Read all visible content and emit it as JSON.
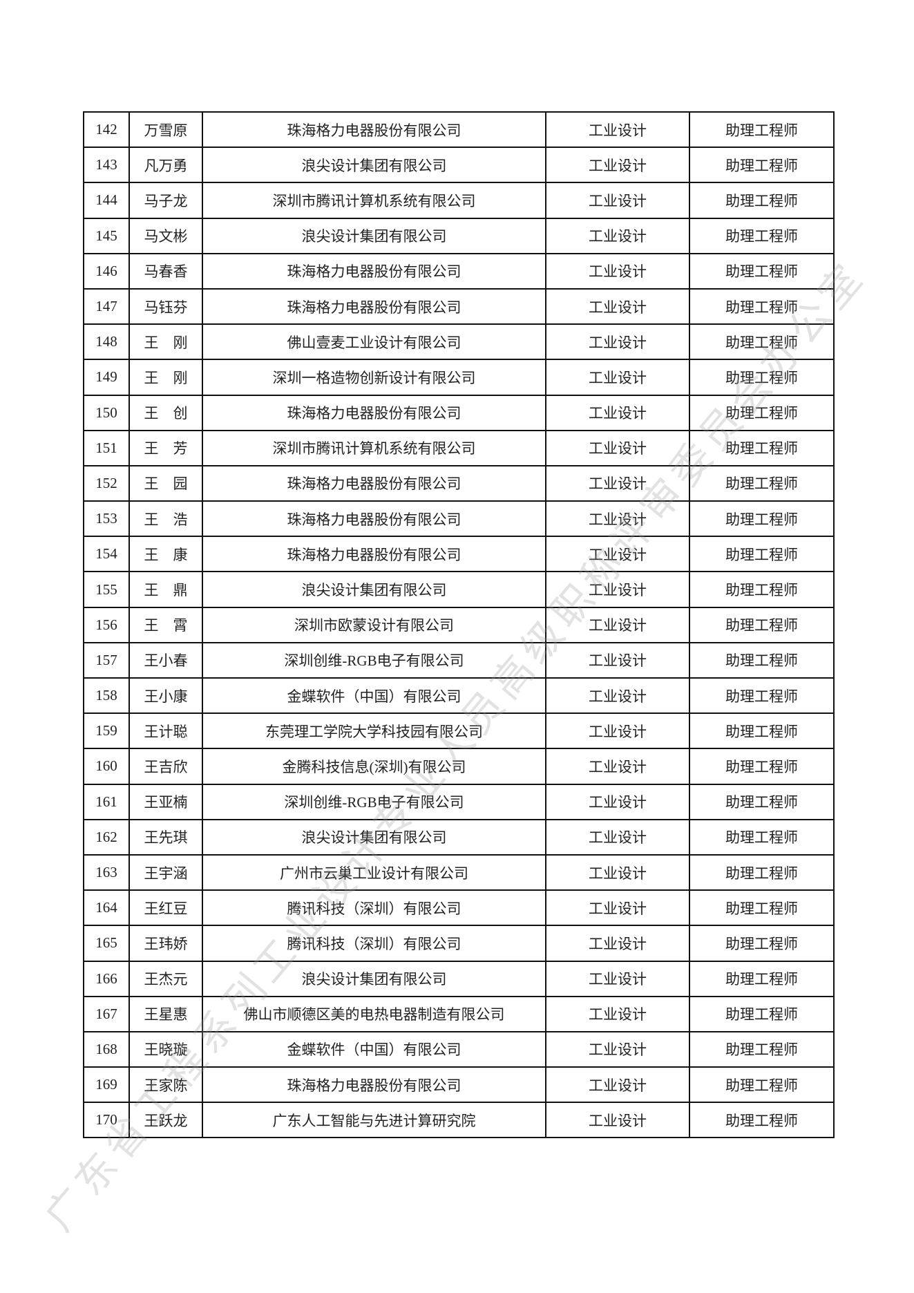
{
  "watermark": "广东省工程系列工业设计专业人员高级职称评审委员会办公室",
  "rows": [
    {
      "no": "142",
      "name": "万雪原",
      "company": "珠海格力电器股份有限公司",
      "field": "工业设计",
      "title": "助理工程师"
    },
    {
      "no": "143",
      "name": "凡万勇",
      "company": "浪尖设计集团有限公司",
      "field": "工业设计",
      "title": "助理工程师"
    },
    {
      "no": "144",
      "name": "马子龙",
      "company": "深圳市腾讯计算机系统有限公司",
      "field": "工业设计",
      "title": "助理工程师"
    },
    {
      "no": "145",
      "name": "马文彬",
      "company": "浪尖设计集团有限公司",
      "field": "工业设计",
      "title": "助理工程师"
    },
    {
      "no": "146",
      "name": "马春香",
      "company": "珠海格力电器股份有限公司",
      "field": "工业设计",
      "title": "助理工程师"
    },
    {
      "no": "147",
      "name": "马钰芬",
      "company": "珠海格力电器股份有限公司",
      "field": "工业设计",
      "title": "助理工程师"
    },
    {
      "no": "148",
      "name": "王　刚",
      "company": "佛山壹麦工业设计有限公司",
      "field": "工业设计",
      "title": "助理工程师"
    },
    {
      "no": "149",
      "name": "王　刚",
      "company": "深圳一格造物创新设计有限公司",
      "field": "工业设计",
      "title": "助理工程师"
    },
    {
      "no": "150",
      "name": "王　创",
      "company": "珠海格力电器股份有限公司",
      "field": "工业设计",
      "title": "助理工程师"
    },
    {
      "no": "151",
      "name": "王　芳",
      "company": "深圳市腾讯计算机系统有限公司",
      "field": "工业设计",
      "title": "助理工程师"
    },
    {
      "no": "152",
      "name": "王　园",
      "company": "珠海格力电器股份有限公司",
      "field": "工业设计",
      "title": "助理工程师"
    },
    {
      "no": "153",
      "name": "王　浩",
      "company": "珠海格力电器股份有限公司",
      "field": "工业设计",
      "title": "助理工程师"
    },
    {
      "no": "154",
      "name": "王　康",
      "company": "珠海格力电器股份有限公司",
      "field": "工业设计",
      "title": "助理工程师"
    },
    {
      "no": "155",
      "name": "王　鼎",
      "company": "浪尖设计集团有限公司",
      "field": "工业设计",
      "title": "助理工程师"
    },
    {
      "no": "156",
      "name": "王　霄",
      "company": "深圳市欧蒙设计有限公司",
      "field": "工业设计",
      "title": "助理工程师"
    },
    {
      "no": "157",
      "name": "王小春",
      "company": "深圳创维-RGB电子有限公司",
      "field": "工业设计",
      "title": "助理工程师"
    },
    {
      "no": "158",
      "name": "王小康",
      "company": "金蝶软件（中国）有限公司",
      "field": "工业设计",
      "title": "助理工程师"
    },
    {
      "no": "159",
      "name": "王计聪",
      "company": "东莞理工学院大学科技园有限公司",
      "field": "工业设计",
      "title": "助理工程师"
    },
    {
      "no": "160",
      "name": "王吉欣",
      "company": "金腾科技信息(深圳)有限公司",
      "field": "工业设计",
      "title": "助理工程师"
    },
    {
      "no": "161",
      "name": "王亚楠",
      "company": "深圳创维-RGB电子有限公司",
      "field": "工业设计",
      "title": "助理工程师"
    },
    {
      "no": "162",
      "name": "王先琪",
      "company": "浪尖设计集团有限公司",
      "field": "工业设计",
      "title": "助理工程师"
    },
    {
      "no": "163",
      "name": "王宇涵",
      "company": "广州市云巢工业设计有限公司",
      "field": "工业设计",
      "title": "助理工程师"
    },
    {
      "no": "164",
      "name": "王红豆",
      "company": "腾讯科技（深圳）有限公司",
      "field": "工业设计",
      "title": "助理工程师"
    },
    {
      "no": "165",
      "name": "王玮娇",
      "company": "腾讯科技（深圳）有限公司",
      "field": "工业设计",
      "title": "助理工程师"
    },
    {
      "no": "166",
      "name": "王杰元",
      "company": "浪尖设计集团有限公司",
      "field": "工业设计",
      "title": "助理工程师"
    },
    {
      "no": "167",
      "name": "王星惠",
      "company": "佛山市顺德区美的电热电器制造有限公司",
      "field": "工业设计",
      "title": "助理工程师"
    },
    {
      "no": "168",
      "name": "王晓璇",
      "company": "金蝶软件（中国）有限公司",
      "field": "工业设计",
      "title": "助理工程师"
    },
    {
      "no": "169",
      "name": "王家陈",
      "company": "珠海格力电器股份有限公司",
      "field": "工业设计",
      "title": "助理工程师"
    },
    {
      "no": "170",
      "name": "王跃龙",
      "company": "广东人工智能与先进计算研究院",
      "field": "工业设计",
      "title": "助理工程师"
    }
  ]
}
